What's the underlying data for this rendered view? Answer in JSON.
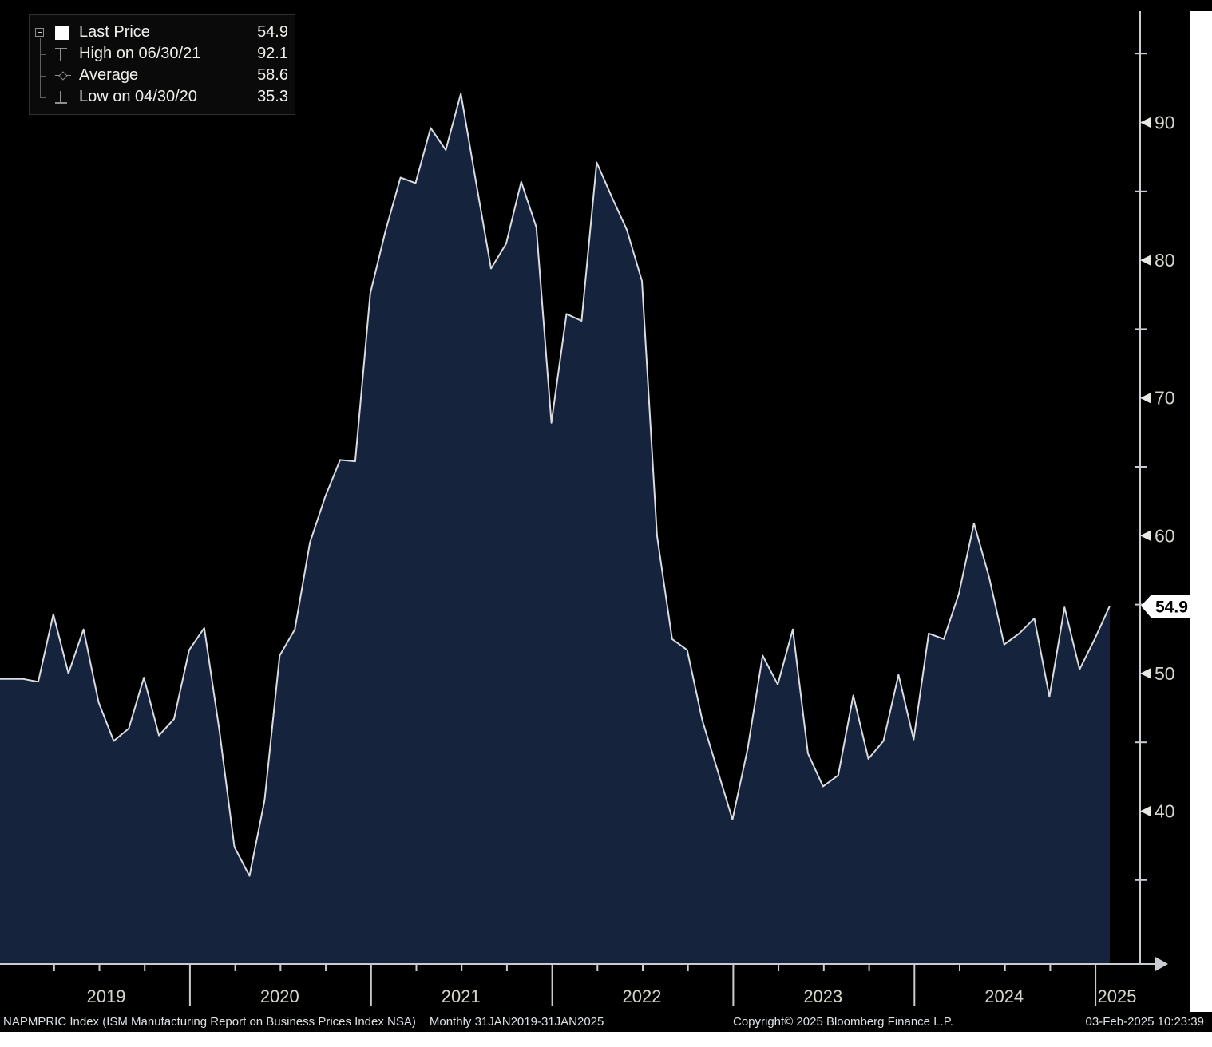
{
  "legend": {
    "rows": [
      {
        "icon": "last-price-swatch",
        "label": "Last Price",
        "value": "54.9"
      },
      {
        "icon": "high-marker",
        "label": "High on 06/30/21",
        "value": "92.1"
      },
      {
        "icon": "average-marker",
        "label": "Average",
        "value": "58.6"
      },
      {
        "icon": "low-marker",
        "label": "Low on 04/30/20",
        "value": "35.3"
      }
    ]
  },
  "y_axis": {
    "labeled_ticks": [
      90,
      80,
      70,
      60,
      50,
      40
    ],
    "minor_ticks": [
      95,
      85,
      75,
      65,
      55,
      45,
      35
    ],
    "last_price_label": "54.9"
  },
  "x_axis": {
    "year_labels": [
      "2019",
      "2020",
      "2021",
      "2022",
      "2023",
      "2024",
      "2025"
    ]
  },
  "footer": {
    "description": "NAPMPRIC Index (ISM Manufacturing Report on Business Prices Index NSA)",
    "periodicity": "Monthly 31JAN2019-31JAN2025",
    "copyright": "Copyright© 2025 Bloomberg Finance L.P.",
    "timestamp": "03-Feb-2025 10:23:39"
  },
  "colors": {
    "background": "#000000",
    "area_fill": "#16233C",
    "line": "#D9DCE1",
    "axis": "#C9CCD0",
    "tick_label": "#D6D6CC",
    "year_label": "#D6D6CC",
    "badge_bg": "#FFFFFF",
    "badge_text": "#000000",
    "legend_text": "#EFEFEC",
    "footer_text": "#DFE2E5",
    "page_margin": "#FFFFFF"
  },
  "chart_data": {
    "type": "area",
    "title": "NAPMPRIC Index (ISM Manufacturing Report on Business Prices Index NSA)",
    "frequency": "monthly",
    "x_start": "2019-01-31",
    "x_end": "2025-01-31",
    "ylim": [
      29,
      97.5
    ],
    "grid": false,
    "legend_position": "top-left",
    "y_labeled_ticks": [
      40,
      50,
      60,
      70,
      80,
      90
    ],
    "series": [
      {
        "name": "NAPMPRIC Index",
        "values": [
          49.6,
          49.4,
          54.3,
          50.0,
          53.2,
          47.9,
          45.1,
          46.0,
          49.7,
          45.5,
          46.7,
          51.7,
          53.3,
          45.9,
          37.4,
          35.3,
          40.8,
          51.3,
          53.2,
          59.5,
          62.8,
          65.5,
          65.4,
          77.6,
          82.1,
          86.0,
          85.6,
          89.6,
          88.0,
          92.1,
          85.7,
          79.4,
          81.2,
          85.7,
          82.4,
          68.2,
          76.1,
          75.6,
          87.1,
          84.6,
          82.2,
          78.5,
          60.0,
          52.5,
          51.7,
          46.6,
          43.0,
          39.4,
          44.5,
          51.3,
          49.2,
          53.2,
          44.2,
          41.8,
          42.6,
          48.4,
          43.8,
          45.1,
          49.9,
          45.2,
          52.9,
          52.5,
          55.8,
          60.9,
          57.0,
          52.1,
          52.9,
          54.0,
          48.3,
          54.8,
          50.3,
          52.5,
          54.9
        ]
      }
    ],
    "stats": {
      "last": 54.9,
      "high": 92.1,
      "high_date": "06/30/21",
      "average": 58.6,
      "low": 35.3,
      "low_date": "04/30/20"
    }
  }
}
